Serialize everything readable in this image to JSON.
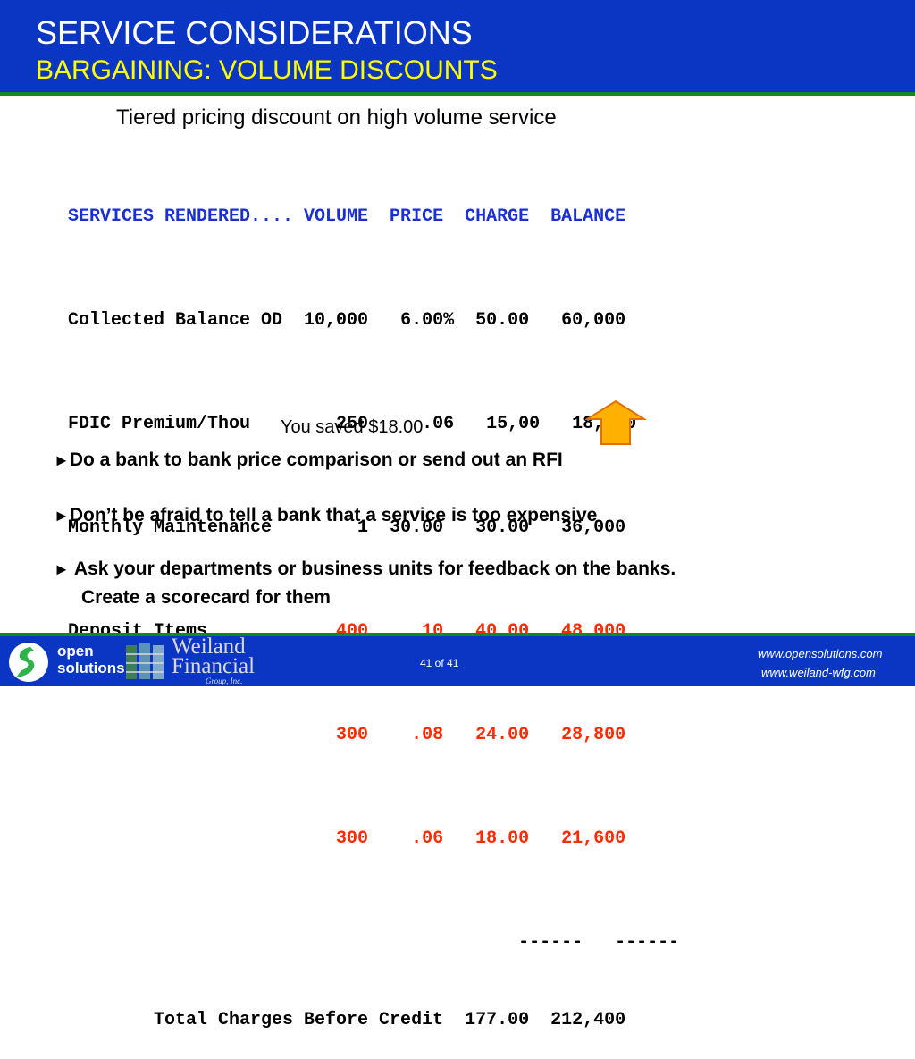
{
  "header": {
    "title": "SERVICE CONSIDERATIONS",
    "subtitle": "BARGAINING: VOLUME DISCOUNTS"
  },
  "intro": "Tiered pricing discount on high volume service",
  "table": {
    "header_row": "SERVICES RENDERED.... VOLUME  PRICE  CHARGE  BALANCE",
    "rows": [
      {
        "service": "Collected Balance OD  ",
        "volume": "10,000",
        "price": "6.00%",
        "charge": "50.00",
        "balance": "60,000"
      },
      {
        "service": "FDIC Premium/Thou     ",
        "volume": "   250",
        "price": "  .06",
        "charge": "15,00",
        "balance": "18,000"
      },
      {
        "service": "Monthly Maintenance   ",
        "volume": "     1",
        "price": "30.00",
        "charge": "30.00",
        "balance": "36,000"
      },
      {
        "service": "Deposit Items         ",
        "volume": "   400",
        "price": "  .10",
        "charge": "40.00",
        "balance": "48,000"
      },
      {
        "service": "                      ",
        "volume": "   300",
        "price": "  .08",
        "charge": "24.00",
        "balance": "28,800"
      },
      {
        "service": "                      ",
        "volume": "   300",
        "price": "  .06",
        "charge": "18.00",
        "balance": "21,600"
      }
    ],
    "separator": "                                          ------   ------",
    "total_row": "        Total Charges Before Credit  177.00  212,400",
    "highlight_color": "#ff2a00",
    "header_color": "#1a2fd4"
  },
  "saved_note": "You saved $18.00",
  "bullets": [
    {
      "marker": "►",
      "text": "Do a bank to bank price comparison or send out an RFI"
    },
    {
      "marker": "►",
      "text": "Don’t be afraid to tell a bank that a service is too expensive"
    },
    {
      "marker": "►",
      "text": " Ask your departments or business units for feedback on the banks."
    },
    {
      "marker": "",
      "text": "Create a scorecard for them"
    }
  ],
  "footer": {
    "logo1_line1": "open",
    "logo1_line2": "solutions",
    "logo2_line1": "Weiland",
    "logo2_line2": "Financial",
    "logo2_line3": "Group, Inc.",
    "page": "41 of 41",
    "url1": "www.opensolutions.com",
    "url2": "www.weiland-wfg.com"
  },
  "colors": {
    "brand_blue": "#0b36c4",
    "accent_green": "#0a8a2a",
    "subtitle_yellow": "#ffff00",
    "arrow_fill": "#ffb000",
    "arrow_stroke": "#e07000"
  },
  "icons": [
    "up-arrow-icon",
    "open-solutions-logo-icon",
    "weiland-financial-logo-icon"
  ]
}
